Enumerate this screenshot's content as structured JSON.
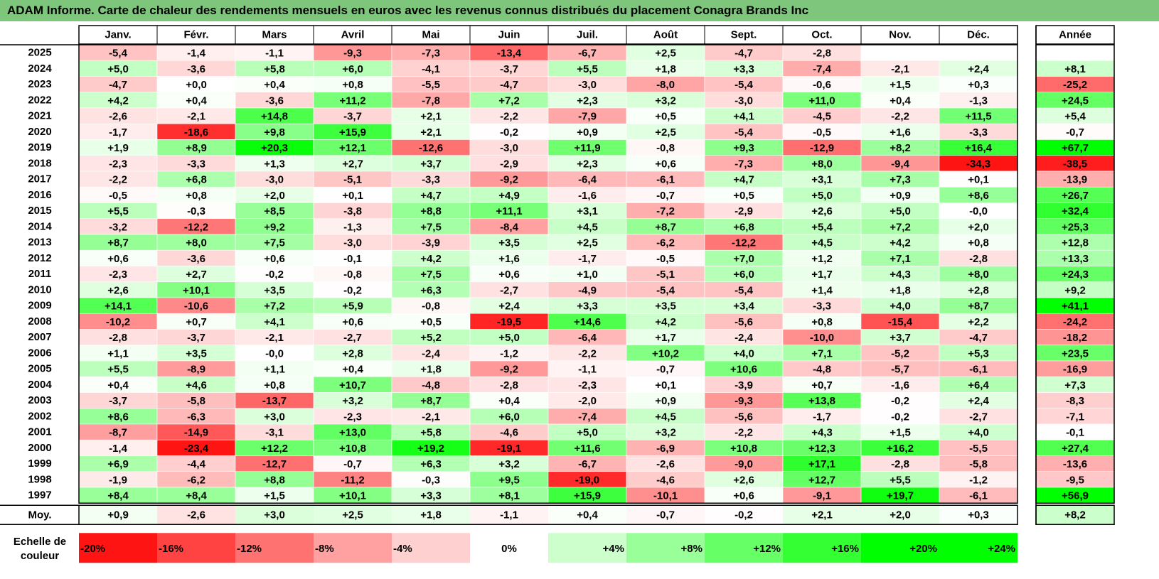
{
  "title": "ADAM Informe. Carte de chaleur des rendements mensuels en euros avec les revenus connus distribués du placement Conagra Brands Inc",
  "chart_data": {
    "type": "heatmap",
    "months": [
      "Janv.",
      "Févr.",
      "Mars",
      "Avril",
      "Mai",
      "Juin",
      "Juil.",
      "Août",
      "Sept.",
      "Oct.",
      "Nov.",
      "Déc."
    ],
    "year_header": "Année",
    "rows": [
      {
        "year": "2025",
        "values": [
          "-5,4",
          "-1,4",
          "-1,1",
          "-9,3",
          "-7,3",
          "-13,4",
          "-6,7",
          "+2,5",
          "-4,7",
          "-2,8",
          "",
          ""
        ],
        "annual": ""
      },
      {
        "year": "2024",
        "values": [
          "+5,0",
          "-3,6",
          "+5,8",
          "+6,0",
          "-4,1",
          "-3,7",
          "+5,5",
          "+1,8",
          "+3,3",
          "-7,4",
          "-2,1",
          "+2,4"
        ],
        "annual": "+8,1"
      },
      {
        "year": "2023",
        "values": [
          "-4,7",
          "+0,0",
          "+0,4",
          "+0,8",
          "-5,5",
          "-4,7",
          "-3,0",
          "-8,0",
          "-5,4",
          "-0,6",
          "+1,5",
          "+0,3"
        ],
        "annual": "-25,2"
      },
      {
        "year": "2022",
        "values": [
          "+4,2",
          "+0,4",
          "-3,6",
          "+11,2",
          "-7,8",
          "+7,2",
          "+2,3",
          "+3,2",
          "-3,0",
          "+11,0",
          "+0,4",
          "-1,3"
        ],
        "annual": "+24,5"
      },
      {
        "year": "2021",
        "values": [
          "-2,6",
          "-2,1",
          "+14,8",
          "-3,7",
          "+2,1",
          "-2,2",
          "-7,9",
          "+0,5",
          "+4,1",
          "-4,5",
          "-2,2",
          "+11,5"
        ],
        "annual": "+5,4"
      },
      {
        "year": "2020",
        "values": [
          "-1,7",
          "-18,6",
          "+9,8",
          "+15,9",
          "+2,1",
          "-0,2",
          "+0,9",
          "+2,5",
          "-5,4",
          "-0,5",
          "+1,6",
          "-3,3"
        ],
        "annual": "-0,7"
      },
      {
        "year": "2019",
        "values": [
          "+1,9",
          "+8,9",
          "+20,3",
          "+12,1",
          "-12,6",
          "-3,0",
          "+11,9",
          "-0,8",
          "+9,3",
          "-12,9",
          "+8,2",
          "+16,4"
        ],
        "annual": "+67,7"
      },
      {
        "year": "2018",
        "values": [
          "-2,3",
          "-3,3",
          "+1,3",
          "+2,7",
          "+3,7",
          "-2,9",
          "+2,3",
          "+0,6",
          "-7,3",
          "+8,0",
          "-9,4",
          "-34,3"
        ],
        "annual": "-38,5"
      },
      {
        "year": "2017",
        "values": [
          "-2,2",
          "+6,8",
          "-3,0",
          "-5,1",
          "-3,3",
          "-9,2",
          "-6,4",
          "-6,1",
          "+4,7",
          "+3,1",
          "+7,3",
          "+0,1"
        ],
        "annual": "-13,9"
      },
      {
        "year": "2016",
        "values": [
          "-0,5",
          "+0,8",
          "+2,0",
          "+0,1",
          "+4,7",
          "+4,9",
          "-1,6",
          "-0,7",
          "+0,5",
          "+5,0",
          "+0,9",
          "+8,6"
        ],
        "annual": "+26,7"
      },
      {
        "year": "2015",
        "values": [
          "+5,5",
          "-0,3",
          "+8,5",
          "-3,8",
          "+8,8",
          "+11,1",
          "+3,1",
          "-7,2",
          "-2,9",
          "+2,6",
          "+5,0",
          "-0,0"
        ],
        "annual": "+32,4"
      },
      {
        "year": "2014",
        "values": [
          "-3,2",
          "-12,2",
          "+9,2",
          "-1,3",
          "+7,5",
          "-8,4",
          "+4,5",
          "+8,7",
          "+6,8",
          "+5,4",
          "+7,2",
          "+2,0"
        ],
        "annual": "+25,3"
      },
      {
        "year": "2013",
        "values": [
          "+8,7",
          "+8,0",
          "+7,5",
          "-3,0",
          "-3,9",
          "+3,5",
          "+2,5",
          "-6,2",
          "-12,2",
          "+4,5",
          "+4,2",
          "+0,8"
        ],
        "annual": "+12,8"
      },
      {
        "year": "2012",
        "values": [
          "+0,6",
          "-3,6",
          "+0,6",
          "-0,1",
          "+4,2",
          "+1,6",
          "-1,7",
          "-0,5",
          "+7,0",
          "+1,2",
          "+7,1",
          "-2,8"
        ],
        "annual": "+13,3"
      },
      {
        "year": "2011",
        "values": [
          "-2,3",
          "+2,7",
          "-0,2",
          "-0,8",
          "+7,5",
          "+0,6",
          "+1,0",
          "-5,1",
          "+6,0",
          "+1,7",
          "+4,3",
          "+8,0"
        ],
        "annual": "+24,3"
      },
      {
        "year": "2010",
        "values": [
          "+2,6",
          "+10,1",
          "+3,5",
          "-0,2",
          "+6,3",
          "-2,7",
          "-4,9",
          "-5,4",
          "-5,4",
          "+1,4",
          "+1,8",
          "+2,8"
        ],
        "annual": "+9,2"
      },
      {
        "year": "2009",
        "values": [
          "+14,1",
          "-10,6",
          "+7,2",
          "+5,9",
          "-0,8",
          "+2,4",
          "+3,3",
          "+3,5",
          "+3,4",
          "-3,3",
          "+4,0",
          "+8,7"
        ],
        "annual": "+41,1"
      },
      {
        "year": "2008",
        "values": [
          "-10,2",
          "+0,7",
          "+4,1",
          "+0,6",
          "+0,5",
          "-19,5",
          "+14,6",
          "+4,2",
          "-5,6",
          "+0,8",
          "-15,4",
          "+2,2"
        ],
        "annual": "-24,2"
      },
      {
        "year": "2007",
        "values": [
          "-2,8",
          "-3,7",
          "-2,1",
          "-2,7",
          "+5,2",
          "+5,0",
          "-6,4",
          "+1,7",
          "-2,4",
          "-10,0",
          "+3,7",
          "-4,7"
        ],
        "annual": "-18,2"
      },
      {
        "year": "2006",
        "values": [
          "+1,1",
          "+3,5",
          "-0,0",
          "+2,8",
          "-2,4",
          "-1,2",
          "-2,2",
          "+10,2",
          "+4,0",
          "+7,1",
          "-5,2",
          "+5,3"
        ],
        "annual": "+23,5"
      },
      {
        "year": "2005",
        "values": [
          "+5,5",
          "-8,9",
          "+1,1",
          "+0,4",
          "+1,8",
          "-9,2",
          "-1,1",
          "-0,7",
          "+10,6",
          "-4,8",
          "-5,7",
          "-6,1"
        ],
        "annual": "-16,9"
      },
      {
        "year": "2004",
        "values": [
          "+0,4",
          "+4,6",
          "+0,8",
          "+10,7",
          "-4,8",
          "-2,8",
          "-2,3",
          "+0,1",
          "-3,9",
          "+0,7",
          "-1,6",
          "+6,4"
        ],
        "annual": "+7,3"
      },
      {
        "year": "2003",
        "values": [
          "-3,7",
          "-5,8",
          "-13,7",
          "+3,2",
          "+8,7",
          "+0,4",
          "-2,0",
          "+0,9",
          "-9,3",
          "+13,8",
          "-0,2",
          "+2,4"
        ],
        "annual": "-8,3"
      },
      {
        "year": "2002",
        "values": [
          "+8,6",
          "-6,3",
          "+3,0",
          "-2,3",
          "-2,1",
          "+6,0",
          "-7,4",
          "+4,5",
          "-5,6",
          "-1,7",
          "-0,2",
          "-2,7"
        ],
        "annual": "-7,1"
      },
      {
        "year": "2001",
        "values": [
          "-8,7",
          "-14,9",
          "-3,1",
          "+13,0",
          "+5,8",
          "-4,6",
          "+5,0",
          "+3,2",
          "-2,2",
          "+4,3",
          "+1,5",
          "+4,0"
        ],
        "annual": "-0,1"
      },
      {
        "year": "2000",
        "values": [
          "-1,4",
          "-23,4",
          "+12,2",
          "+10,8",
          "+19,2",
          "-19,1",
          "+11,6",
          "-6,9",
          "+10,8",
          "+12,3",
          "+16,2",
          "-5,5"
        ],
        "annual": "+27,4"
      },
      {
        "year": "1999",
        "values": [
          "+6,9",
          "-4,4",
          "-12,7",
          "-0,7",
          "+6,3",
          "+3,2",
          "-6,7",
          "-2,6",
          "-9,0",
          "+17,1",
          "-2,8",
          "-5,8"
        ],
        "annual": "-13,6"
      },
      {
        "year": "1998",
        "values": [
          "-1,9",
          "-6,2",
          "+8,8",
          "-11,2",
          "-0,3",
          "+9,5",
          "-19,0",
          "-4,6",
          "+2,6",
          "+12,7",
          "+5,5",
          "-1,2"
        ],
        "annual": "-9,5"
      },
      {
        "year": "1997",
        "values": [
          "+8,4",
          "+8,4",
          "+1,5",
          "+10,1",
          "+3,3",
          "+8,1",
          "+15,9",
          "-10,1",
          "+0,6",
          "-9,1",
          "+19,7",
          "-6,1"
        ],
        "annual": "+56,9"
      }
    ],
    "average": {
      "label": "Moy.",
      "values": [
        "+0,9",
        "-2,6",
        "+3,0",
        "+2,5",
        "+1,8",
        "-1,1",
        "+0,4",
        "-0,7",
        "-0,2",
        "+2,1",
        "+2,0",
        "+0,3"
      ],
      "annual": "+8,2"
    },
    "scale": {
      "label_line1": "Echelle de",
      "label_line2": "couleur",
      "steps": [
        {
          "label": "-20%",
          "value": -20
        },
        {
          "label": "-16%",
          "value": -16
        },
        {
          "label": "-12%",
          "value": -12
        },
        {
          "label": "-8%",
          "value": -8
        },
        {
          "label": "-4%",
          "value": -4
        },
        {
          "label": "0%",
          "value": 0
        },
        {
          "label": "+4%",
          "value": 4
        },
        {
          "label": "+8%",
          "value": 8
        },
        {
          "label": "+12%",
          "value": 12
        },
        {
          "label": "+16%",
          "value": 16
        },
        {
          "label": "+20%",
          "value": 20
        },
        {
          "label": "+24%",
          "value": 24
        }
      ]
    },
    "colors": {
      "title_bg": "#7dc67b",
      "negative": "#ff0000",
      "positive": "#00ff00",
      "neutral": "#ffffff"
    }
  }
}
